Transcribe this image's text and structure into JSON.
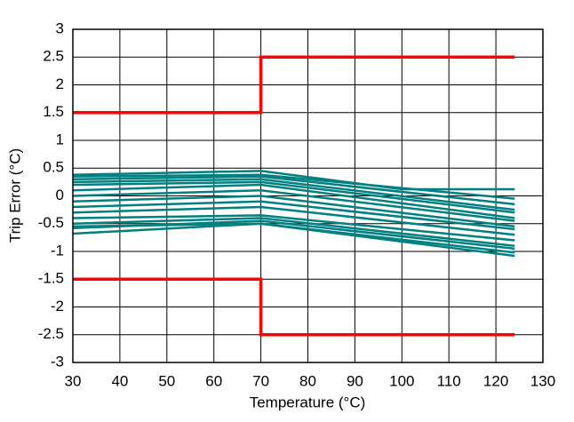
{
  "chart_data": {
    "type": "line",
    "x_label": "Temperature (°C)",
    "y_label": "Trip Error (°C)",
    "xlim": [
      30,
      130
    ],
    "xticks": [
      30,
      40,
      50,
      60,
      70,
      80,
      90,
      100,
      110,
      120,
      130
    ],
    "ylim": [
      -3,
      3
    ],
    "yticks": [
      3,
      2.5,
      2,
      1.5,
      1,
      0.5,
      0,
      -0.5,
      -1,
      -1.5,
      -2,
      -2.5,
      -3
    ],
    "grid": true,
    "series": [
      {
        "color": "#ff0000",
        "x": [
          30,
          70,
          70,
          124
        ],
        "values": [
          1.5,
          1.5,
          2.5,
          2.5
        ]
      },
      {
        "color": "#ff0000",
        "x": [
          30,
          70,
          70,
          124
        ],
        "values": [
          -1.5,
          -1.5,
          -2.5,
          -2.5
        ]
      },
      {
        "color": "#008080",
        "x": [
          30,
          70,
          100,
          124
        ],
        "values": [
          0.38,
          0.45,
          0.12,
          0.12
        ]
      },
      {
        "color": "#008080",
        "x": [
          30,
          70,
          124
        ],
        "values": [
          0.35,
          0.38,
          -0.05
        ]
      },
      {
        "color": "#008080",
        "x": [
          30,
          70,
          124
        ],
        "values": [
          0.3,
          0.35,
          -0.15
        ]
      },
      {
        "color": "#008080",
        "x": [
          30,
          70,
          124
        ],
        "values": [
          0.25,
          0.3,
          -0.25
        ]
      },
      {
        "color": "#008080",
        "x": [
          30,
          70,
          124
        ],
        "values": [
          0.2,
          0.25,
          -0.3
        ]
      },
      {
        "color": "#008080",
        "x": [
          30,
          70,
          124
        ],
        "values": [
          0.1,
          0.2,
          -0.4
        ]
      },
      {
        "color": "#008080",
        "x": [
          30,
          70,
          124
        ],
        "values": [
          0.0,
          0.1,
          -0.45
        ]
      },
      {
        "color": "#008080",
        "x": [
          30,
          70,
          124
        ],
        "values": [
          -0.1,
          0.0,
          -0.55
        ]
      },
      {
        "color": "#008080",
        "x": [
          30,
          70,
          124
        ],
        "values": [
          -0.2,
          -0.1,
          -0.6
        ]
      },
      {
        "color": "#008080",
        "x": [
          30,
          70,
          124
        ],
        "values": [
          -0.3,
          -0.2,
          -0.7
        ]
      },
      {
        "color": "#008080",
        "x": [
          30,
          70,
          124
        ],
        "values": [
          -0.4,
          -0.35,
          -0.8
        ]
      },
      {
        "color": "#008080",
        "x": [
          30,
          70,
          124
        ],
        "values": [
          -0.5,
          -0.4,
          -0.9
        ]
      },
      {
        "color": "#008080",
        "x": [
          30,
          70,
          124
        ],
        "values": [
          -0.58,
          -0.45,
          -0.95
        ]
      },
      {
        "color": "#008080",
        "x": [
          30,
          70,
          124
        ],
        "values": [
          -0.55,
          -0.5,
          -1.02
        ]
      },
      {
        "color": "#008080",
        "x": [
          30,
          70,
          124
        ],
        "values": [
          -0.68,
          -0.5,
          -1.08
        ]
      }
    ]
  }
}
